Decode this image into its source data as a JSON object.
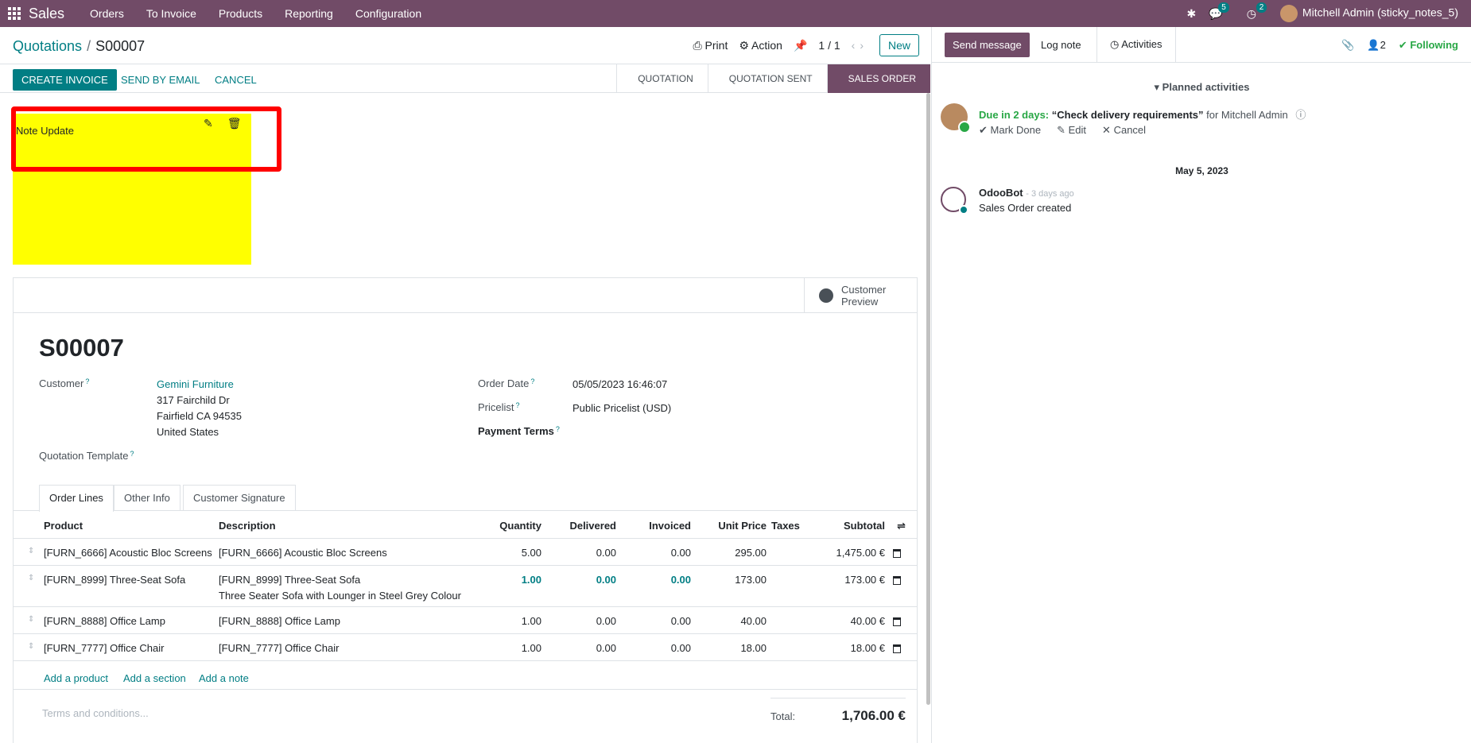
{
  "navbar": {
    "brand": "Sales",
    "menu": [
      "Orders",
      "To Invoice",
      "Products",
      "Reporting",
      "Configuration"
    ],
    "messages_count": "5",
    "activities_count": "2",
    "user": "Mitchell Admin (sticky_notes_5)"
  },
  "control": {
    "breadcrumb_parent": "Quotations",
    "breadcrumb_sep": "/",
    "breadcrumb_current": "S00007",
    "print_label": "Print",
    "action_label": "Action",
    "pager": "1 / 1",
    "new_label": "New"
  },
  "actions": {
    "create_invoice": "CREATE INVOICE",
    "send_email": "SEND BY EMAIL",
    "cancel": "CANCEL"
  },
  "stages": [
    "QUOTATION",
    "QUOTATION SENT",
    "SALES ORDER"
  ],
  "sticky_note": {
    "text": "Note Update",
    "color": "#ffff00"
  },
  "form": {
    "customer_preview": "Customer Preview",
    "order_name": "S00007",
    "customer_label": "Customer",
    "customer_name": "Gemini Furniture",
    "address_line1": "317 Fairchild Dr",
    "address_line2": "Fairfield CA 94535",
    "address_line3": "United States",
    "template_label": "Quotation Template",
    "order_date_label": "Order Date",
    "order_date": "05/05/2023 16:46:07",
    "pricelist_label": "Pricelist",
    "pricelist": "Public Pricelist (USD)",
    "payment_terms_label": "Payment Terms",
    "question_mark": "?"
  },
  "tabs": [
    "Order Lines",
    "Other Info",
    "Customer Signature"
  ],
  "table": {
    "headers": {
      "product": "Product",
      "description": "Description",
      "quantity": "Quantity",
      "delivered": "Delivered",
      "invoiced": "Invoiced",
      "unit_price": "Unit Price",
      "taxes": "Taxes",
      "subtotal": "Subtotal"
    },
    "rows": [
      {
        "product": "[FURN_6666] Acoustic Bloc Screens",
        "description": "[FURN_6666] Acoustic Bloc Screens",
        "description2": "",
        "quantity": "5.00",
        "delivered": "0.00",
        "invoiced": "0.00",
        "unit_price": "295.00",
        "subtotal": "1,475.00 €"
      },
      {
        "product": "[FURN_8999] Three-Seat Sofa",
        "description": "[FURN_8999] Three-Seat Sofa",
        "description2": "Three Seater Sofa with Lounger in Steel Grey Colour",
        "quantity": "1.00",
        "delivered": "0.00",
        "invoiced": "0.00",
        "unit_price": "173.00",
        "subtotal": "173.00 €"
      },
      {
        "product": "[FURN_8888] Office Lamp",
        "description": "[FURN_8888] Office Lamp",
        "description2": "",
        "quantity": "1.00",
        "delivered": "0.00",
        "invoiced": "0.00",
        "unit_price": "40.00",
        "subtotal": "40.00 €"
      },
      {
        "product": "[FURN_7777] Office Chair",
        "description": "[FURN_7777] Office Chair",
        "description2": "",
        "quantity": "1.00",
        "delivered": "0.00",
        "invoiced": "0.00",
        "unit_price": "18.00",
        "subtotal": "18.00 €"
      }
    ],
    "add_product": "Add a product",
    "add_section": "Add a section",
    "add_note": "Add a note"
  },
  "terms_placeholder": "Terms and conditions...",
  "totals": {
    "label": "Total:",
    "value": "1,706.00 €"
  },
  "chatter": {
    "send_message": "Send message",
    "log_note": "Log note",
    "activities": "Activities",
    "followers_count": "2",
    "following": "Following",
    "planned_activities": "Planned activities",
    "due": "Due in 2 days:",
    "activity_title": "“Check delivery requirements”",
    "activity_for": "for Mitchell Admin",
    "mark_done": "Mark Done",
    "edit": "Edit",
    "cancel": "Cancel",
    "date_separator": "May 5, 2023",
    "author": "OdooBot",
    "time_ago": "- 3 days ago",
    "message": "Sales Order created"
  },
  "colors": {
    "brand": "#714B67",
    "accent": "#017E84",
    "success": "#28a745",
    "highlight": "#ff0000"
  }
}
